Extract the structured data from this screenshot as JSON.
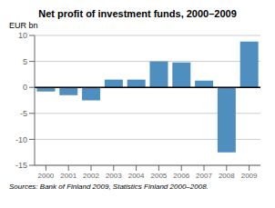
{
  "chart_data": {
    "type": "bar",
    "title": "Net profit of investment funds, 2000–2009",
    "ylabel": "EUR bn",
    "source": "Sources: Bank of Finland 2009, Statistics Finland 2000–2008.",
    "categories": [
      "2000",
      "2001",
      "2002",
      "2003",
      "2004",
      "2005",
      "2006",
      "2007",
      "2008",
      "2009"
    ],
    "values": [
      -0.8,
      -1.5,
      -2.5,
      1.5,
      1.5,
      5.0,
      4.8,
      1.3,
      -12.5,
      8.8
    ],
    "color": "#4f8fc0",
    "ylim": [
      -15,
      10
    ],
    "yticks": [
      -15,
      -10,
      -5,
      0,
      5,
      10
    ],
    "grid": true
  }
}
